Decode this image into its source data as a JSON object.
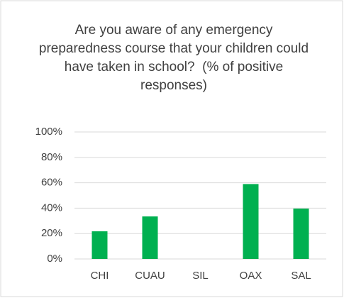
{
  "chart_data": {
    "type": "bar",
    "title": "Are you aware of any emergency preparedness course that your children could have taken in school?  (% of positive responses)",
    "categories": [
      "CHI",
      "CUAU",
      "SIL",
      "OAX",
      "SAL"
    ],
    "values": [
      21.8,
      33.5,
      0,
      59,
      39.7
    ],
    "color": "#00b050",
    "ylim": [
      0,
      100
    ],
    "yticks": [
      {
        "value": 0,
        "label": "0%"
      },
      {
        "value": 20,
        "label": "20%"
      },
      {
        "value": 40,
        "label": "40%"
      },
      {
        "value": 60,
        "label": "60%"
      },
      {
        "value": 80,
        "label": "80%"
      },
      {
        "value": 100,
        "label": "100%"
      }
    ],
    "grid": true
  }
}
